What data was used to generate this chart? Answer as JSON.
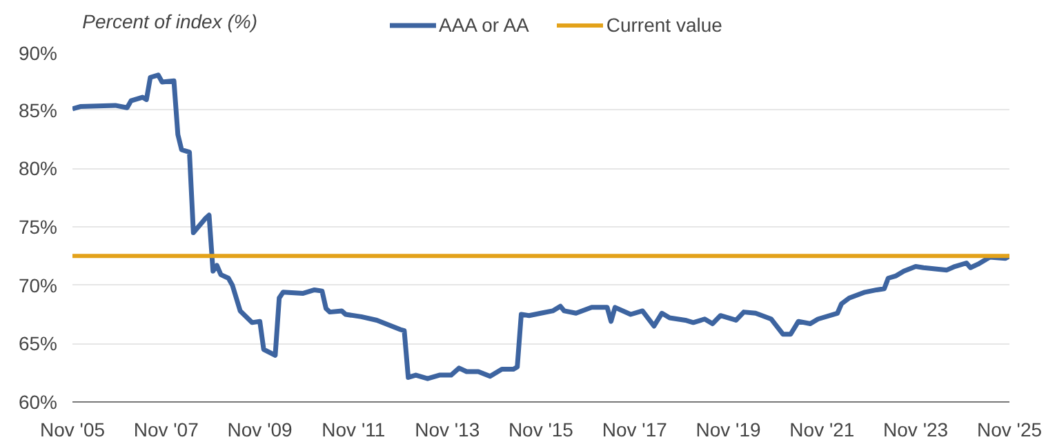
{
  "chart_data": {
    "type": "line",
    "ylabel": "Percent of index (%)",
    "x": [
      "2005-11",
      "2006-01",
      "2006-10",
      "2007-01",
      "2007-02",
      "2007-05",
      "2007-06",
      "2007-07",
      "2007-09",
      "2007-10",
      "2008-01",
      "2008-02",
      "2008-03",
      "2008-05",
      "2008-06",
      "2008-09",
      "2008-10",
      "2008-11",
      "2008-12",
      "2009-01",
      "2009-03",
      "2009-04",
      "2009-06",
      "2009-09",
      "2009-11",
      "2009-12",
      "2010-03",
      "2010-04",
      "2010-05",
      "2010-10",
      "2011-01",
      "2011-03",
      "2011-04",
      "2011-05",
      "2011-08",
      "2011-09",
      "2012-01",
      "2012-05",
      "2012-08",
      "2012-11",
      "2012-12",
      "2013-01",
      "2013-03",
      "2013-06",
      "2013-09",
      "2013-12",
      "2014-02",
      "2014-04",
      "2014-07",
      "2014-10",
      "2015-01",
      "2015-04",
      "2015-05",
      "2015-06",
      "2015-08",
      "2015-11",
      "2016-02",
      "2016-04",
      "2016-05",
      "2016-08",
      "2016-12",
      "2017-04",
      "2017-05",
      "2017-06",
      "2017-10",
      "2018-01",
      "2018-04",
      "2018-06",
      "2018-08",
      "2018-12",
      "2019-02",
      "2019-05",
      "2019-07",
      "2019-09",
      "2020-01",
      "2020-03",
      "2020-06",
      "2020-10",
      "2021-01",
      "2021-03",
      "2021-05",
      "2021-08",
      "2021-10",
      "2022-03",
      "2022-04",
      "2022-06",
      "2022-10",
      "2023-01",
      "2023-03",
      "2023-04",
      "2023-06",
      "2023-08",
      "2023-11",
      "2024-01",
      "2024-07",
      "2024-09",
      "2024-12",
      "2025-01",
      "2025-03",
      "2025-06",
      "2025-10",
      "2025-11"
    ],
    "series": [
      {
        "name": "AAA or AA",
        "color": "#3d64a0",
        "values": [
          85.1,
          85.3,
          85.4,
          85.2,
          85.8,
          86.1,
          85.9,
          87.8,
          88.0,
          87.4,
          87.5,
          82.9,
          81.6,
          81.4,
          74.5,
          75.7,
          76.0,
          71.2,
          71.7,
          70.9,
          70.6,
          70.0,
          67.8,
          66.8,
          66.9,
          64.5,
          64.0,
          68.9,
          69.4,
          69.3,
          69.6,
          69.5,
          68.0,
          67.7,
          67.8,
          67.5,
          67.3,
          67.0,
          66.6,
          66.2,
          66.1,
          62.1,
          62.3,
          62.0,
          62.3,
          62.3,
          62.9,
          62.6,
          62.6,
          62.2,
          62.8,
          62.8,
          63.0,
          67.5,
          67.4,
          67.6,
          67.8,
          68.2,
          67.8,
          67.6,
          68.1,
          68.1,
          66.9,
          68.1,
          67.5,
          67.8,
          66.5,
          67.6,
          67.2,
          67.0,
          66.8,
          67.1,
          66.7,
          67.4,
          67.0,
          67.7,
          67.6,
          67.1,
          65.8,
          65.8,
          66.9,
          66.7,
          67.1,
          67.6,
          68.4,
          68.9,
          69.4,
          69.6,
          69.7,
          70.6,
          70.8,
          71.2,
          71.6,
          71.5,
          71.3,
          71.6,
          71.9,
          71.5,
          71.8,
          72.4,
          72.3,
          72.5
        ]
      }
    ],
    "ref_lines": [
      {
        "axis": "y",
        "value": 72.5,
        "label": "Current value",
        "color": "#e3a21a"
      }
    ],
    "xlim": [
      "2005-11",
      "2025-11"
    ],
    "xticks": [
      {
        "value": "2005-11",
        "label": "Nov '05"
      },
      {
        "value": "2007-11",
        "label": "Nov '07"
      },
      {
        "value": "2009-11",
        "label": "Nov '09"
      },
      {
        "value": "2011-11",
        "label": "Nov '11"
      },
      {
        "value": "2013-11",
        "label": "Nov '13"
      },
      {
        "value": "2015-11",
        "label": "Nov '15"
      },
      {
        "value": "2017-11",
        "label": "Nov '17"
      },
      {
        "value": "2019-11",
        "label": "Nov '19"
      },
      {
        "value": "2021-11",
        "label": "Nov '21"
      },
      {
        "value": "2023-11",
        "label": "Nov '23"
      },
      {
        "value": "2025-11",
        "label": "Nov '25"
      }
    ],
    "ylim": [
      60,
      90
    ],
    "yticks": [
      {
        "value": 60,
        "label": "60%"
      },
      {
        "value": 65,
        "label": "65%"
      },
      {
        "value": 70,
        "label": "70%"
      },
      {
        "value": 75,
        "label": "75%"
      },
      {
        "value": 80,
        "label": "80%"
      },
      {
        "value": 85,
        "label": "85%"
      },
      {
        "value": 90,
        "label": "90%"
      }
    ],
    "grid": "y",
    "legend": "top",
    "line_style": "solid",
    "marker": "none"
  }
}
